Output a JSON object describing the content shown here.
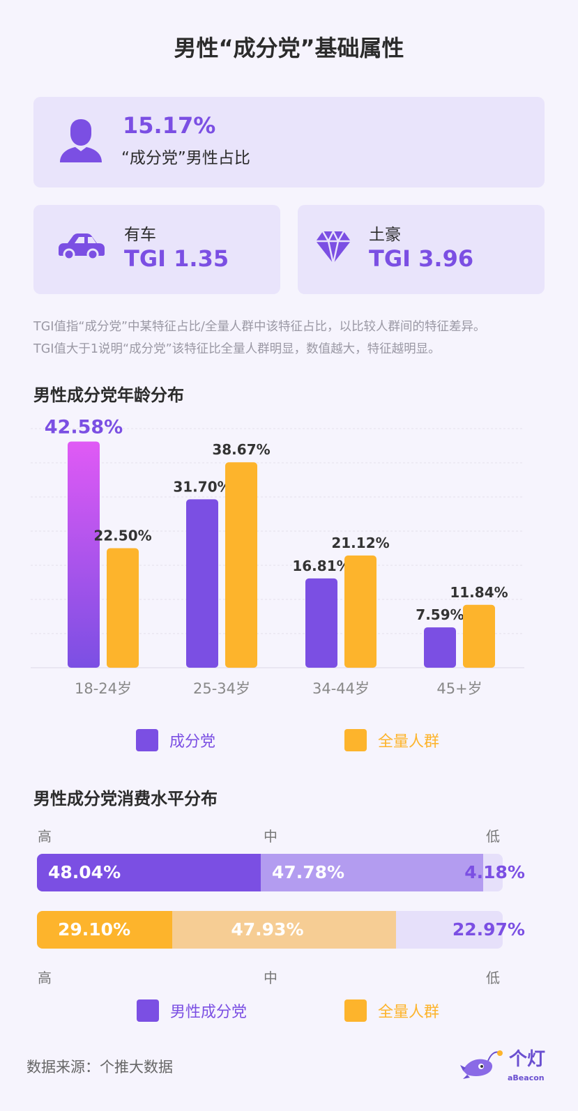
{
  "title": "男性“成分党”基础属性",
  "main_stat": {
    "value": "15.17%",
    "label": "“成分党”男性占比",
    "icon": "person-icon"
  },
  "tgi_cards": [
    {
      "label": "有车",
      "value": "TGI 1.35",
      "icon": "car-icon"
    },
    {
      "label": "土豪",
      "value": "TGI 3.96",
      "icon": "diamond-icon"
    }
  ],
  "note": {
    "line1": "TGI值指“成分党”中某特征占比/全量人群中该特征占比，以比较人群间的特征差异。",
    "line2": "TGI值大于1说明“成分党”该特征比全量人群明显，数值越大，特征越明显。"
  },
  "age_section_title": "男性成分党年龄分布",
  "spending_section_title": "男性成分党消费水平分布",
  "colors": {
    "purple": "#7b4fe3",
    "purple_highlight_top": "#e05af5",
    "orange": "#fdb42c",
    "purple_mid": "#b39cf0",
    "purple_light": "#e6e0fa",
    "orange_mid": "#f6cd94"
  },
  "chart_data": [
    {
      "type": "bar",
      "categories": [
        "18-24岁",
        "25-34岁",
        "34-44岁",
        "45+岁"
      ],
      "series": [
        {
          "name": "成分党",
          "values": [
            42.58,
            31.7,
            16.81,
            7.59
          ],
          "labels": [
            "42.58%",
            "31.70%",
            "16.81%",
            "7.59%"
          ]
        },
        {
          "name": "全量人群",
          "values": [
            22.5,
            38.67,
            21.12,
            11.84
          ],
          "labels": [
            "22.50%",
            "38.67%",
            "21.12%",
            "11.84%"
          ]
        }
      ],
      "ylim": [
        0,
        45
      ],
      "grid": true,
      "legend": "bottom"
    },
    {
      "type": "bar",
      "orientation": "horizontal-stacked",
      "categories": [
        "高",
        "中",
        "低"
      ],
      "series": [
        {
          "name": "男性成分党",
          "values": [
            48.04,
            47.78,
            4.18
          ],
          "labels": [
            "48.04%",
            "47.78%",
            "4.18%"
          ]
        },
        {
          "name": "全量人群",
          "values": [
            29.1,
            47.93,
            22.97
          ],
          "labels": [
            "29.10%",
            "47.93%",
            "22.97%"
          ]
        }
      ],
      "legend": "bottom"
    }
  ],
  "footer": {
    "source": "数据来源：个推大数据",
    "brand": "个灯",
    "brand_sub": "aBeacon"
  }
}
